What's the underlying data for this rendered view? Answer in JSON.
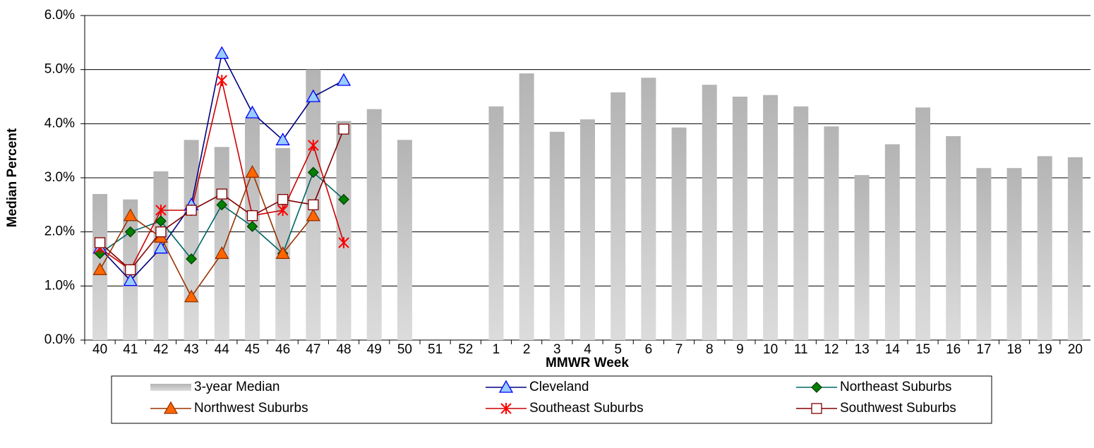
{
  "chart_data": {
    "type": "bar",
    "x_label": "MMWR Week",
    "y_label": "Median Percent",
    "categories": [
      "40",
      "41",
      "42",
      "43",
      "44",
      "45",
      "46",
      "47",
      "48",
      "49",
      "50",
      "51",
      "52",
      "1",
      "2",
      "3",
      "4",
      "5",
      "6",
      "7",
      "8",
      "9",
      "10",
      "11",
      "12",
      "13",
      "14",
      "15",
      "16",
      "17",
      "18",
      "19",
      "20"
    ],
    "ylim": [
      0,
      6
    ],
    "yticks": [
      {
        "value": 0,
        "label": "0.0%"
      },
      {
        "value": 1,
        "label": "1.0%"
      },
      {
        "value": 2,
        "label": "2.0%"
      },
      {
        "value": 3,
        "label": "3.0%"
      },
      {
        "value": 4,
        "label": "4.0%"
      },
      {
        "value": 5,
        "label": "5.0%"
      },
      {
        "value": 6,
        "label": "6.0%"
      }
    ],
    "grid": true,
    "legend": "bottom",
    "series": [
      {
        "name": "3-year Median",
        "type": "bar",
        "color": "#c8c8c8",
        "values": [
          2.7,
          2.6,
          3.12,
          3.7,
          3.57,
          4.1,
          3.55,
          5.0,
          4.05,
          4.27,
          3.7,
          null,
          null,
          4.32,
          4.93,
          3.85,
          4.08,
          4.58,
          4.85,
          3.93,
          4.72,
          4.5,
          4.53,
          4.32,
          3.95,
          3.05,
          3.62,
          4.3,
          3.77,
          3.18,
          3.18,
          3.4,
          3.38
        ]
      },
      {
        "name": "Cleveland",
        "type": "line",
        "color": "#000080",
        "marker": "triangle",
        "marker_color": "#99ccff",
        "marker_edge": "#0000ff",
        "values": [
          1.7,
          1.1,
          1.7,
          2.5,
          5.3,
          4.2,
          3.7,
          4.5,
          4.8,
          null,
          null,
          null,
          null,
          null,
          null,
          null,
          null,
          null,
          null,
          null,
          null,
          null,
          null,
          null,
          null,
          null,
          null,
          null,
          null,
          null,
          null,
          null,
          null
        ]
      },
      {
        "name": "Northeast Suburbs",
        "type": "line",
        "color": "#006666",
        "marker": "diamond",
        "marker_color": "#008000",
        "marker_edge": "#004000",
        "values": [
          1.6,
          2.0,
          2.2,
          1.5,
          2.5,
          2.1,
          1.6,
          3.1,
          2.6,
          null,
          null,
          null,
          null,
          null,
          null,
          null,
          null,
          null,
          null,
          null,
          null,
          null,
          null,
          null,
          null,
          null,
          null,
          null,
          null,
          null,
          null,
          null,
          null
        ]
      },
      {
        "name": "Northwest Suburbs",
        "type": "line",
        "color": "#993300",
        "marker": "triangle",
        "marker_color": "#ff6600",
        "marker_edge": "#993300",
        "values": [
          1.3,
          2.3,
          1.9,
          0.8,
          1.6,
          3.1,
          1.6,
          2.3,
          null,
          null,
          null,
          null,
          null,
          null,
          null,
          null,
          null,
          null,
          null,
          null,
          null,
          null,
          null,
          null,
          null,
          null,
          null,
          null,
          null,
          null,
          null,
          null,
          null
        ]
      },
      {
        "name": "Southeast Suburbs",
        "type": "line",
        "color": "#cc0000",
        "marker": "asterisk",
        "marker_color": "#ff0000",
        "marker_edge": "#ff0000",
        "values": [
          1.7,
          1.3,
          2.4,
          2.4,
          4.8,
          2.3,
          2.4,
          3.6,
          1.8,
          null,
          null,
          null,
          null,
          null,
          null,
          null,
          null,
          null,
          null,
          null,
          null,
          null,
          null,
          null,
          null,
          null,
          null,
          null,
          null,
          null,
          null,
          null,
          null
        ]
      },
      {
        "name": "Southwest Suburbs",
        "type": "line",
        "color": "#800000",
        "marker": "square",
        "marker_color": "#ffffff",
        "marker_edge": "#800000",
        "values": [
          1.8,
          1.3,
          2.0,
          2.4,
          2.7,
          2.3,
          2.6,
          2.5,
          3.9,
          null,
          null,
          null,
          null,
          null,
          null,
          null,
          null,
          null,
          null,
          null,
          null,
          null,
          null,
          null,
          null,
          null,
          null,
          null,
          null,
          null,
          null,
          null,
          null
        ]
      }
    ]
  }
}
